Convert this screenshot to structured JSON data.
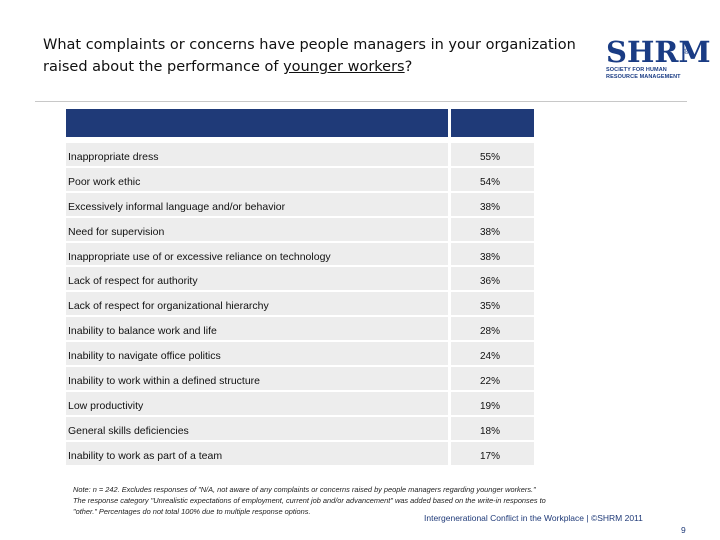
{
  "slide": {
    "title_pre": "What complaints or concerns have people managers in your organization raised about the performance of ",
    "title_underlined": "younger workers",
    "title_post": "?"
  },
  "logo": {
    "mark": "SHRM",
    "registered": "®",
    "line1": "SOCIETY FOR HUMAN",
    "line2": "RESOURCE MANAGEMENT"
  },
  "table": {
    "header_color": "#1f3a78",
    "rows": [
      {
        "label": "Inappropriate dress",
        "value": "55%"
      },
      {
        "label": "Poor work ethic",
        "value": "54%"
      },
      {
        "label": "Excessively informal language and/or behavior",
        "value": "38%"
      },
      {
        "label": "Need for supervision",
        "value": "38%"
      },
      {
        "label": "Inappropriate use of or excessive reliance on technology",
        "value": "38%"
      },
      {
        "label": "Lack of respect for authority",
        "value": "36%"
      },
      {
        "label": "Lack of respect for organizational hierarchy",
        "value": "35%"
      },
      {
        "label": "Inability to balance work and life",
        "value": "28%"
      },
      {
        "label": "Inability to navigate office politics",
        "value": "24%"
      },
      {
        "label": "Inability to work within a defined structure",
        "value": "22%"
      },
      {
        "label": "Low productivity",
        "value": "19%"
      },
      {
        "label": "General skills deficiencies",
        "value": "18%"
      },
      {
        "label": "Inability to work as part of a team",
        "value": "17%"
      }
    ]
  },
  "note": {
    "line1": "Note: n = 242. Excludes responses of \"N/A, not aware of any complaints or concerns raised by people managers regarding younger workers.\"",
    "line2": "The response category \"Unrealistic expectations of employment, current job and/or advancement\" was added based on the write-in responses to",
    "line3": "\"other.\" Percentages do not total 100% due to multiple response options."
  },
  "footer": {
    "text": "Intergenerational Conflict in the Workplace | ©SHRM 2011",
    "page": "9"
  }
}
